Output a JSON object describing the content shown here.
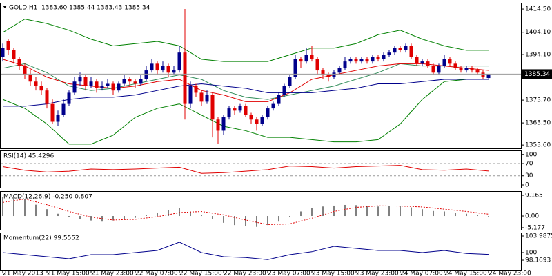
{
  "chart_data": [
    {
      "type": "candlestick",
      "title": "GOLD,H1",
      "info": "1383.60 1385.44 1383.43 1385.34",
      "up_color": "#00008b",
      "down_color": "#e00000",
      "last_price_line": true,
      "categories": [
        "21 May 2013",
        null,
        null,
        null,
        null,
        null,
        null,
        null,
        "21 May 15:00",
        null,
        null,
        null,
        null,
        null,
        null,
        null,
        "21 May 23:00",
        null,
        null,
        null,
        null,
        null,
        null,
        null,
        "22 May 07:00",
        null,
        null,
        null,
        null,
        null,
        null,
        null,
        "22 May 15:00",
        null,
        null,
        null,
        null,
        null,
        null,
        null,
        "22 May 23:00",
        null,
        null,
        null,
        null,
        null,
        null,
        null,
        "23 May 07:00",
        null,
        null,
        null,
        null,
        null,
        null,
        null,
        "23 May 15:00",
        null,
        null,
        null,
        null,
        null,
        null,
        null,
        "23 May 23:00",
        null,
        null,
        null,
        null,
        null,
        null,
        null,
        "24 May 07:00",
        null,
        null,
        null,
        null,
        null,
        null,
        null,
        "24 May 15:00",
        null,
        null,
        null,
        null,
        null,
        null,
        null,
        "24 May 23:00"
      ],
      "ohlc": [
        [
          1393,
          1399,
          1391,
          1397
        ],
        [
          1400,
          1401,
          1394,
          1396
        ],
        [
          1396,
          1397,
          1390,
          1392
        ],
        [
          1392,
          1393,
          1387,
          1389
        ],
        [
          1389,
          1390,
          1383,
          1385
        ],
        [
          1385,
          1387,
          1380,
          1382
        ],
        [
          1382,
          1384,
          1378,
          1380
        ],
        [
          1380,
          1382,
          1376,
          1378
        ],
        [
          1378,
          1379,
          1370,
          1372
        ],
        [
          1372,
          1374,
          1363,
          1364
        ],
        [
          1364,
          1369,
          1362,
          1367
        ],
        [
          1367,
          1374,
          1366,
          1372
        ],
        [
          1372,
          1378,
          1371,
          1377
        ],
        [
          1377,
          1384,
          1376,
          1382
        ],
        [
          1382,
          1386,
          1380,
          1384
        ],
        [
          1384,
          1385,
          1378,
          1380
        ],
        [
          1380,
          1384,
          1379,
          1382
        ],
        [
          1382,
          1383,
          1377,
          1379
        ],
        [
          1379,
          1382,
          1378,
          1380
        ],
        [
          1380,
          1383,
          1379,
          1381
        ],
        [
          1381,
          1382,
          1376,
          1378
        ],
        [
          1378,
          1382,
          1377,
          1381
        ],
        [
          1381,
          1385,
          1380,
          1383
        ],
        [
          1383,
          1384,
          1380,
          1382
        ],
        [
          1382,
          1383,
          1379,
          1381
        ],
        [
          1381,
          1385,
          1380,
          1383
        ],
        [
          1383,
          1389,
          1382,
          1387
        ],
        [
          1387,
          1392,
          1386,
          1390
        ],
        [
          1390,
          1391,
          1385,
          1387
        ],
        [
          1387,
          1391,
          1386,
          1389
        ],
        [
          1389,
          1390,
          1384,
          1386
        ],
        [
          1386,
          1389,
          1385,
          1387
        ],
        [
          1387,
          1398,
          1386,
          1395
        ],
        [
          1395,
          1414.5,
          1365,
          1372
        ],
        [
          1372,
          1382,
          1370,
          1380
        ],
        [
          1380,
          1381,
          1375,
          1377
        ],
        [
          1377,
          1378,
          1371,
          1373
        ],
        [
          1373,
          1378,
          1372,
          1376
        ],
        [
          1376,
          1377,
          1357,
          1365
        ],
        [
          1365,
          1366,
          1354,
          1360
        ],
        [
          1360,
          1367,
          1358,
          1366
        ],
        [
          1366,
          1371,
          1365,
          1370
        ],
        [
          1370,
          1371,
          1367,
          1369
        ],
        [
          1369,
          1372,
          1368,
          1371
        ],
        [
          1371,
          1372,
          1366,
          1367
        ],
        [
          1367,
          1368,
          1363,
          1365
        ],
        [
          1365,
          1366,
          1360,
          1363
        ],
        [
          1363,
          1367,
          1362,
          1366
        ],
        [
          1366,
          1371,
          1365,
          1370
        ],
        [
          1370,
          1373,
          1369,
          1372
        ],
        [
          1372,
          1377,
          1371,
          1376
        ],
        [
          1376,
          1381,
          1375,
          1380
        ],
        [
          1380,
          1385,
          1379,
          1384
        ],
        [
          1384,
          1394,
          1383,
          1392
        ],
        [
          1392,
          1393,
          1388,
          1391
        ],
        [
          1391,
          1397,
          1390,
          1394
        ],
        [
          1394,
          1398,
          1391,
          1392
        ],
        [
          1392,
          1393,
          1385,
          1387
        ],
        [
          1387,
          1388,
          1383,
          1385
        ],
        [
          1385,
          1386,
          1382,
          1384
        ],
        [
          1384,
          1387,
          1383,
          1386
        ],
        [
          1386,
          1389,
          1385,
          1388
        ],
        [
          1388,
          1393,
          1387,
          1391
        ],
        [
          1391,
          1393,
          1390,
          1392
        ],
        [
          1392,
          1393,
          1390,
          1391
        ],
        [
          1391,
          1393,
          1390,
          1392
        ],
        [
          1392,
          1393,
          1390,
          1391
        ],
        [
          1391,
          1394,
          1390,
          1393
        ],
        [
          1393,
          1394,
          1391,
          1392
        ],
        [
          1392,
          1395,
          1391,
          1394
        ],
        [
          1394,
          1396,
          1393,
          1395
        ],
        [
          1395,
          1398,
          1394,
          1397
        ],
        [
          1397,
          1398,
          1395,
          1396
        ],
        [
          1396,
          1399,
          1395,
          1398
        ],
        [
          1398,
          1399,
          1392,
          1393
        ],
        [
          1393,
          1394,
          1389,
          1390
        ],
        [
          1390,
          1392,
          1389,
          1391
        ],
        [
          1391,
          1392,
          1388,
          1389
        ],
        [
          1389,
          1390,
          1385,
          1386
        ],
        [
          1386,
          1390,
          1385,
          1389
        ],
        [
          1389,
          1394,
          1388,
          1392
        ],
        [
          1392,
          1393,
          1389,
          1390
        ],
        [
          1390,
          1391,
          1387,
          1388
        ],
        [
          1388,
          1389,
          1386,
          1387
        ],
        [
          1387,
          1389,
          1386,
          1388
        ],
        [
          1388,
          1389,
          1386,
          1387
        ],
        [
          1387,
          1388,
          1385,
          1386
        ],
        [
          1386,
          1387,
          1383,
          1384
        ],
        [
          1383.6,
          1385.44,
          1383.43,
          1385.34
        ]
      ],
      "series": [
        {
          "type": "line",
          "color": "#008000",
          "x": [
            0,
            4,
            8,
            12,
            16,
            20,
            24,
            28,
            32,
            36,
            40,
            44,
            48,
            52,
            56,
            60,
            64,
            68,
            72,
            76,
            80,
            84,
            88
          ],
          "values": [
            1404,
            1410,
            1408,
            1405,
            1401,
            1398,
            1399,
            1400,
            1398,
            1392,
            1391,
            1391,
            1391,
            1394,
            1397,
            1397,
            1399,
            1403,
            1405,
            1401,
            1398,
            1396,
            1396
          ]
        },
        {
          "type": "line",
          "color": "#008000",
          "x": [
            0,
            4,
            8,
            12,
            16,
            20,
            24,
            28,
            32,
            36,
            40,
            44,
            48,
            52,
            56,
            60,
            64,
            68,
            72,
            76,
            80,
            84,
            88
          ],
          "values": [
            1374,
            1370,
            1363,
            1354,
            1354,
            1358,
            1366,
            1370,
            1372,
            1367,
            1362,
            1360,
            1357,
            1357,
            1356,
            1355,
            1355,
            1356,
            1363,
            1374,
            1382,
            1383,
            1383
          ]
        },
        {
          "type": "line",
          "color": "#2e8b57",
          "x": [
            0,
            4,
            8,
            12,
            16,
            20,
            24,
            28,
            32,
            36,
            40,
            44,
            48,
            52,
            56,
            60,
            64,
            68,
            72,
            76,
            80,
            84,
            88
          ],
          "values": [
            1388,
            1390,
            1386,
            1380,
            1378,
            1379,
            1381,
            1383,
            1385,
            1383,
            1378,
            1375,
            1374,
            1376,
            1378,
            1380,
            1383,
            1386,
            1390,
            1389,
            1389,
            1389,
            1389
          ]
        },
        {
          "type": "line",
          "color": "#e00000",
          "x": [
            0,
            4,
            8,
            12,
            16,
            20,
            24,
            28,
            32,
            36,
            40,
            44,
            48,
            52,
            56,
            60,
            64,
            68,
            72,
            76,
            80,
            84,
            88
          ],
          "values": [
            1392,
            1389,
            1384,
            1381,
            1380,
            1379,
            1380,
            1382,
            1383,
            1378,
            1376,
            1373,
            1373,
            1377,
            1383,
            1385,
            1387,
            1389,
            1390,
            1390,
            1389,
            1388,
            1387
          ]
        },
        {
          "type": "line",
          "color": "#00008b",
          "x": [
            0,
            4,
            8,
            12,
            16,
            20,
            24,
            28,
            32,
            36,
            40,
            44,
            48,
            52,
            56,
            60,
            64,
            68,
            72,
            76,
            80,
            84,
            88
          ],
          "values": [
            1371,
            1371,
            1372,
            1374,
            1375,
            1375,
            1376,
            1378,
            1380,
            1381,
            1380,
            1379,
            1377,
            1377,
            1377,
            1378,
            1379,
            1381,
            1381,
            1382,
            1383,
            1383,
            1383
          ]
        }
      ],
      "ylim": [
        1352.1,
        1417.3
      ],
      "yticks": [
        {
          "value": 1414.5,
          "label": "1414.50"
        },
        {
          "value": 1404.1,
          "label": "1404.10"
        },
        {
          "value": 1394.1,
          "label": "1394.10"
        },
        {
          "value": 1383.9,
          "label": "1383.90"
        },
        {
          "value": 1373.7,
          "label": "1373.70"
        },
        {
          "value": 1363.5,
          "label": "1363.50"
        },
        {
          "value": 1353.6,
          "label": "1353.60"
        }
      ]
    },
    {
      "type": "line",
      "title": "RSI(14) 45.4296",
      "ylim": [
        -9,
        113
      ],
      "yticks": [
        100,
        70,
        30,
        0
      ],
      "dashed_levels": [
        70,
        30
      ],
      "series": [
        {
          "type": "line",
          "color": "#e00000",
          "x": [
            0,
            4,
            8,
            12,
            16,
            20,
            24,
            28,
            32,
            36,
            40,
            44,
            48,
            52,
            56,
            60,
            64,
            68,
            72,
            76,
            80,
            84,
            88
          ],
          "values": [
            60,
            48,
            42,
            45,
            52,
            50,
            52,
            55,
            58,
            38,
            40,
            45,
            50,
            62,
            60,
            55,
            60,
            62,
            64,
            50,
            48,
            52,
            45.4296
          ]
        }
      ]
    },
    {
      "type": "bar",
      "title": "MACD(12,26,9) -0.250 0.807",
      "ylim": [
        -6.1,
        11.0
      ],
      "yticks": [
        9.165,
        {
          "value": 0,
          "label": "0.00"
        },
        -5.177
      ],
      "series": [
        {
          "type": "bar",
          "color": "#000000",
          "x": [
            0,
            2,
            4,
            6,
            8,
            10,
            12,
            14,
            16,
            18,
            20,
            22,
            24,
            26,
            28,
            30,
            32,
            34,
            36,
            38,
            40,
            42,
            44,
            46,
            48,
            50,
            52,
            54,
            56,
            58,
            60,
            62,
            64,
            66,
            68,
            70,
            72,
            74,
            76,
            78,
            80,
            82,
            84,
            86,
            88
          ],
          "values": [
            8.5,
            8.8,
            7.5,
            5,
            3,
            1,
            -0.5,
            -1.5,
            -2,
            -2.5,
            -2,
            -1.5,
            -0.8,
            0.5,
            1.5,
            2.5,
            3.5,
            2,
            0.5,
            -1.5,
            -3,
            -4,
            -4.5,
            -4.8,
            -4,
            -2.5,
            -0.5,
            2,
            3.5,
            4.2,
            4.6,
            4.9,
            4.8,
            4.5,
            4.2,
            4.3,
            4.5,
            3.8,
            3,
            2.2,
            2,
            1.5,
            1,
            0.5,
            -0.25
          ]
        },
        {
          "type": "line",
          "color": "#e00000",
          "dashed": true,
          "x": [
            0,
            4,
            8,
            12,
            16,
            20,
            24,
            28,
            32,
            36,
            40,
            44,
            48,
            52,
            56,
            60,
            64,
            68,
            72,
            76,
            80,
            84,
            88
          ],
          "values": [
            6,
            7.5,
            5,
            2,
            -0.5,
            -1.8,
            -1.5,
            -0.3,
            1.5,
            2,
            0.5,
            -1.8,
            -3.8,
            -3.5,
            -1,
            2,
            3.8,
            4.5,
            4.4,
            4,
            3,
            2,
            0.807
          ]
        }
      ]
    },
    {
      "type": "line",
      "title": "Momentum(22) 99.5552",
      "ylim": [
        95.68,
        104.82
      ],
      "yticks": [
        103.9875,
        100,
        98.1693
      ],
      "series": [
        {
          "type": "line",
          "color": "#00008b",
          "x": [
            0,
            4,
            8,
            12,
            16,
            20,
            24,
            28,
            32,
            36,
            40,
            44,
            48,
            52,
            56,
            60,
            64,
            68,
            72,
            76,
            80,
            84,
            88
          ],
          "values": [
            100,
            99.5,
            99,
            98.5,
            99.5,
            99.5,
            100,
            100.5,
            102.5,
            100,
            99,
            98.8,
            98.3,
            99.5,
            100.2,
            101.5,
            101,
            100.5,
            100.5,
            100,
            100.5,
            99.8,
            99.5552
          ]
        }
      ]
    }
  ]
}
